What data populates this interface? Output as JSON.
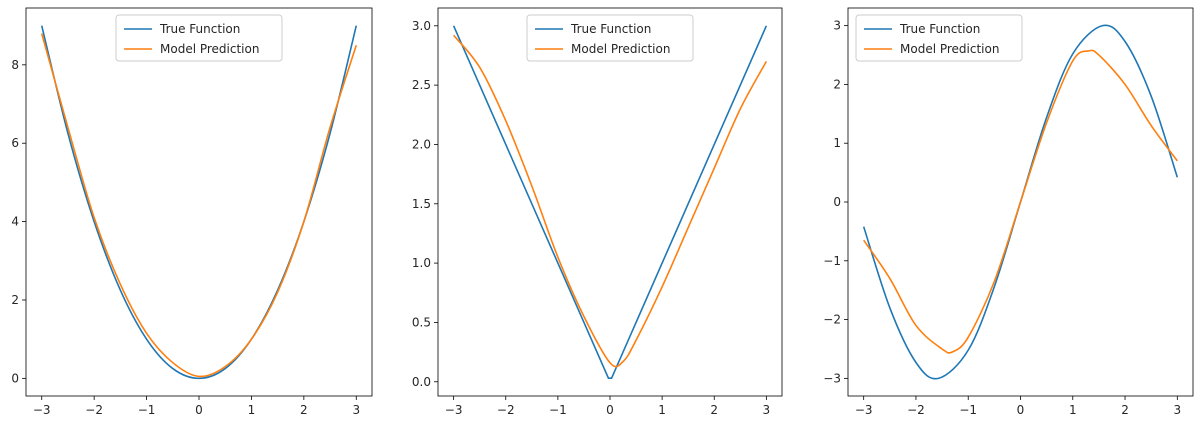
{
  "chart_data": [
    {
      "type": "line",
      "xlim": [
        -3.3,
        3.3
      ],
      "ylim": [
        -0.45,
        9.45
      ],
      "xticks": [
        -3,
        -2,
        -1,
        0,
        1,
        2,
        3
      ],
      "yticks": [
        0,
        2,
        4,
        6,
        8
      ],
      "xtick_labels": [
        "−3",
        "−2",
        "−1",
        "0",
        "1",
        "2",
        "3"
      ],
      "ytick_labels": [
        "0",
        "2",
        "4",
        "6",
        "8"
      ],
      "legend_loc": "upper center",
      "series": [
        {
          "name": "True Function",
          "color": "#1f77b4",
          "x": [
            -3,
            -2.5,
            -2,
            -1.5,
            -1,
            -0.5,
            0,
            0.5,
            1,
            1.5,
            2,
            2.5,
            3
          ],
          "y": [
            9.0,
            6.25,
            4.0,
            2.25,
            1.0,
            0.25,
            0.0,
            0.25,
            1.0,
            2.25,
            4.0,
            6.25,
            9.0
          ]
        },
        {
          "name": "Model Prediction",
          "color": "#ff7f0e",
          "x": [
            -3,
            -2.5,
            -2,
            -1.5,
            -1,
            -0.5,
            0,
            0.5,
            1,
            1.5,
            2,
            2.5,
            3
          ],
          "y": [
            8.8,
            6.4,
            4.1,
            2.4,
            1.15,
            0.4,
            0.05,
            0.3,
            1.0,
            2.2,
            4.0,
            6.4,
            8.5
          ]
        }
      ]
    },
    {
      "type": "line",
      "xlim": [
        -3.3,
        3.3
      ],
      "ylim": [
        -0.12,
        3.15
      ],
      "xticks": [
        -3,
        -2,
        -1,
        0,
        1,
        2,
        3
      ],
      "yticks": [
        0.0,
        0.5,
        1.0,
        1.5,
        2.0,
        2.5,
        3.0
      ],
      "xtick_labels": [
        "−3",
        "−2",
        "−1",
        "0",
        "1",
        "2",
        "3"
      ],
      "ytick_labels": [
        "0.0",
        "0.5",
        "1.0",
        "1.5",
        "2.0",
        "2.5",
        "3.0"
      ],
      "legend_loc": "upper center",
      "series": [
        {
          "name": "True Function",
          "color": "#1f77b4",
          "x": [
            -3,
            -2,
            -1,
            -0.03,
            0.03,
            1,
            2,
            3
          ],
          "y": [
            3.0,
            2.0,
            1.0,
            0.03,
            0.03,
            1.0,
            2.0,
            3.0
          ]
        },
        {
          "name": "Model Prediction",
          "color": "#ff7f0e",
          "x": [
            -3,
            -2.5,
            -2,
            -1.5,
            -1,
            -0.5,
            0,
            0.25,
            0.5,
            1,
            1.5,
            2,
            2.5,
            3
          ],
          "y": [
            2.92,
            2.65,
            2.2,
            1.65,
            1.05,
            0.55,
            0.16,
            0.17,
            0.35,
            0.8,
            1.3,
            1.8,
            2.3,
            2.7
          ]
        }
      ]
    },
    {
      "type": "line",
      "xlim": [
        -3.3,
        3.3
      ],
      "ylim": [
        -3.3,
        3.3
      ],
      "xticks": [
        -3,
        -2,
        -1,
        0,
        1,
        2,
        3
      ],
      "yticks": [
        -3,
        -2,
        -1,
        0,
        1,
        2,
        3
      ],
      "xtick_labels": [
        "−3",
        "−2",
        "−1",
        "0",
        "1",
        "2",
        "3"
      ],
      "ytick_labels": [
        "−3",
        "−2",
        "−1",
        "0",
        "1",
        "2",
        "3"
      ],
      "legend_loc": "upper left",
      "series": [
        {
          "name": "True Function",
          "color": "#1f77b4",
          "x": [
            -3,
            -2.5,
            -2,
            -1.57,
            -1,
            -0.5,
            0,
            0.5,
            1,
            1.57,
            2,
            2.5,
            3
          ],
          "y": [
            -0.42,
            -1.8,
            -2.73,
            -3.0,
            -2.52,
            -1.44,
            0.0,
            1.44,
            2.52,
            3.0,
            2.73,
            1.8,
            0.42
          ]
        },
        {
          "name": "Model Prediction",
          "color": "#ff7f0e",
          "x": [
            -3,
            -2.5,
            -2,
            -1.5,
            -1.3,
            -1,
            -0.5,
            0,
            0.5,
            1,
            1.3,
            1.5,
            2,
            2.5,
            3
          ],
          "y": [
            -0.65,
            -1.3,
            -2.1,
            -2.5,
            -2.55,
            -2.3,
            -1.35,
            0.0,
            1.35,
            2.4,
            2.57,
            2.5,
            2.0,
            1.3,
            0.7
          ]
        }
      ]
    }
  ]
}
